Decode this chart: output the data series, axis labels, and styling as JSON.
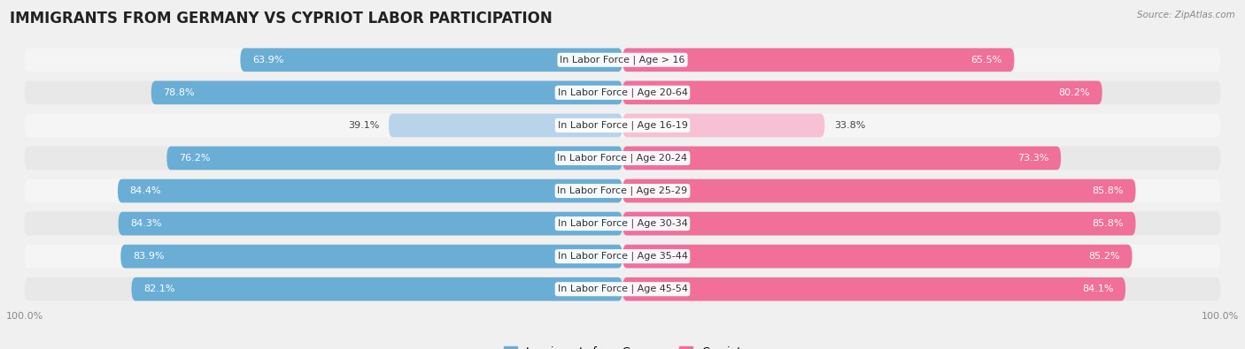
{
  "title": "IMMIGRANTS FROM GERMANY VS CYPRIOT LABOR PARTICIPATION",
  "source": "Source: ZipAtlas.com",
  "categories": [
    "In Labor Force | Age > 16",
    "In Labor Force | Age 20-64",
    "In Labor Force | Age 16-19",
    "In Labor Force | Age 20-24",
    "In Labor Force | Age 25-29",
    "In Labor Force | Age 30-34",
    "In Labor Force | Age 35-44",
    "In Labor Force | Age 45-54"
  ],
  "germany_values": [
    63.9,
    78.8,
    39.1,
    76.2,
    84.4,
    84.3,
    83.9,
    82.1
  ],
  "cypriot_values": [
    65.5,
    80.2,
    33.8,
    73.3,
    85.8,
    85.8,
    85.2,
    84.1
  ],
  "germany_color": "#6aaed6",
  "germany_color_light": "#b8d4ea",
  "cypriot_color": "#f0709a",
  "cypriot_color_light": "#f8c0d4",
  "row_bg_light": "#f5f5f5",
  "row_bg_dark": "#e8e8e8",
  "background_color": "#f0f0f0",
  "legend_germany": "Immigrants from Germany",
  "legend_cypriot": "Cypriot",
  "title_fontsize": 12,
  "label_fontsize": 8,
  "tick_fontsize": 8,
  "annotation_fontsize": 8
}
